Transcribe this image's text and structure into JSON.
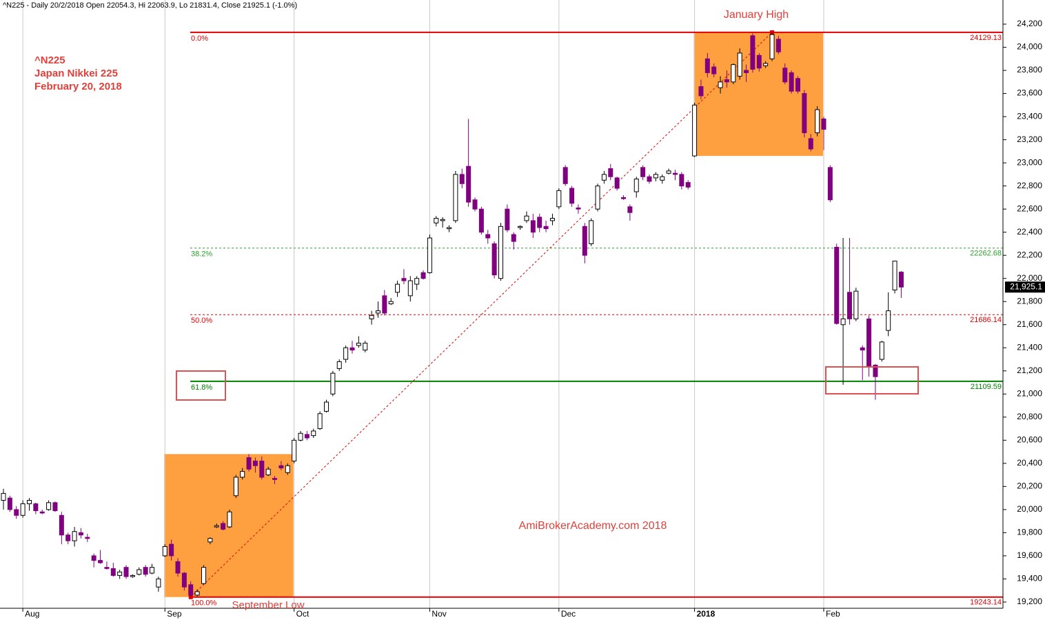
{
  "chart_data": {
    "type": "candlestick",
    "title": "^N225 - Daily 20/2/2018 Open 22054.3, Hi 22063.9, Lo 21831.4, Close 21925.1 (-1.0%)",
    "annotations": [
      "^N225",
      "Japan Nikkei 225",
      "February 20, 2018"
    ],
    "high_label": "January High",
    "low_label": "September Low",
    "watermark": "AmiBrokerAcademy.com  2018",
    "last_value_label": "21,925.1",
    "up_color": "#ffffff",
    "down_color": "#800080",
    "zones": [
      {
        "start": "Sep",
        "end": "Oct",
        "low": 19243.14,
        "high": 20480,
        "color": "#ffa040"
      },
      {
        "start": "2018",
        "end": "Feb",
        "low": 23060,
        "high": 24129.13,
        "color": "#ffa040"
      }
    ],
    "fib_levels": [
      {
        "label": "0.0%",
        "value": 24129.13,
        "color": "#e00000",
        "dashed": false
      },
      {
        "label": "38.2%",
        "value": 22262.68,
        "color": "#2aa02a",
        "dashed": true
      },
      {
        "label": "50.0%",
        "value": 21686.14,
        "color": "#e00000",
        "dashed": true
      },
      {
        "label": "61.8%",
        "value": 21109.59,
        "color": "#008000",
        "dashed": false
      },
      {
        "label": "100.0%",
        "value": 19243.14,
        "color": "#e00000",
        "dashed": false
      }
    ],
    "ylim": [
      19146,
      24409
    ],
    "yticks": [
      {
        "value": 19200,
        "label": "19,200"
      },
      {
        "value": 19400,
        "label": "19,400"
      },
      {
        "value": 19600,
        "label": "19,600"
      },
      {
        "value": 19800,
        "label": "19,800"
      },
      {
        "value": 20000,
        "label": "20,000"
      },
      {
        "value": 20200,
        "label": "20,200"
      },
      {
        "value": 20400,
        "label": "20,400"
      },
      {
        "value": 20600,
        "label": "20,600"
      },
      {
        "value": 20800,
        "label": "20,800"
      },
      {
        "value": 21000,
        "label": "21,000"
      },
      {
        "value": 21200,
        "label": "21,200"
      },
      {
        "value": 21400,
        "label": "21,400"
      },
      {
        "value": 21600,
        "label": "21,600"
      },
      {
        "value": 21800,
        "label": "21,800"
      },
      {
        "value": 22000,
        "label": "22,000"
      },
      {
        "value": 22200,
        "label": "22,200"
      },
      {
        "value": 22400,
        "label": "22,400"
      },
      {
        "value": 22600,
        "label": "22,600"
      },
      {
        "value": 22800,
        "label": "22,800"
      },
      {
        "value": 23000,
        "label": "23,000"
      },
      {
        "value": 23200,
        "label": "23,200"
      },
      {
        "value": 23400,
        "label": "23,400"
      },
      {
        "value": 23600,
        "label": "23,600"
      },
      {
        "value": 23800,
        "label": "23,800"
      },
      {
        "value": 24000,
        "label": "24,000"
      },
      {
        "value": 24200,
        "label": "24,200"
      }
    ],
    "categories": [
      null,
      null,
      null,
      "Aug",
      null,
      null,
      null,
      null,
      null,
      null,
      null,
      null,
      null,
      null,
      null,
      null,
      null,
      null,
      null,
      null,
      null,
      null,
      null,
      null,
      null,
      "Sep",
      null,
      null,
      null,
      null,
      null,
      null,
      null,
      null,
      null,
      null,
      null,
      null,
      null,
      null,
      null,
      null,
      null,
      null,
      null,
      "Oct",
      null,
      null,
      null,
      null,
      null,
      null,
      null,
      null,
      null,
      null,
      null,
      null,
      null,
      null,
      null,
      null,
      null,
      null,
      null,
      null,
      "Nov",
      null,
      null,
      null,
      null,
      null,
      null,
      null,
      null,
      null,
      null,
      null,
      null,
      null,
      null,
      null,
      null,
      null,
      null,
      null,
      "Dec",
      null,
      null,
      null,
      null,
      null,
      null,
      null,
      null,
      null,
      null,
      null,
      null,
      null,
      null,
      null,
      null,
      null,
      null,
      null,
      null,
      "2018",
      null,
      null,
      null,
      null,
      null,
      null,
      null,
      null,
      null,
      null,
      null,
      null,
      null,
      null,
      null,
      null,
      null,
      null,
      null,
      "Feb",
      null,
      null,
      null,
      null,
      null,
      null,
      null,
      null,
      null,
      null,
      null,
      null
    ],
    "ohlc": [
      [
        20080,
        20180,
        20000,
        20140
      ],
      [
        20100,
        20120,
        19980,
        20000
      ],
      [
        20000,
        20030,
        19920,
        19950
      ],
      [
        19950,
        20080,
        19930,
        20050
      ],
      [
        20050,
        20100,
        19990,
        20080
      ],
      [
        20050,
        20060,
        19960,
        19990
      ],
      [
        19980,
        20000,
        19960,
        19970
      ],
      [
        20000,
        20080,
        19990,
        20060
      ],
      [
        20060,
        20070,
        19980,
        19990
      ],
      [
        19950,
        19980,
        19700,
        19780
      ],
      [
        19780,
        19800,
        19700,
        19730
      ],
      [
        19730,
        19850,
        19680,
        19810
      ],
      [
        19800,
        19840,
        19750,
        19780
      ],
      [
        19760,
        19790,
        19720,
        19750
      ],
      [
        19600,
        19620,
        19500,
        19560
      ],
      [
        19560,
        19650,
        19530,
        19540
      ],
      [
        19500,
        19550,
        19480,
        19490
      ],
      [
        19490,
        19540,
        19420,
        19430
      ],
      [
        19430,
        19480,
        19400,
        19460
      ],
      [
        19500,
        19520,
        19400,
        19420
      ],
      [
        19420,
        19440,
        19410,
        19430
      ],
      [
        19440,
        19500,
        19430,
        19480
      ],
      [
        19500,
        19520,
        19420,
        19440
      ],
      [
        19450,
        19530,
        19440,
        19500
      ],
      [
        19330,
        19420,
        19290,
        19400
      ],
      [
        19600,
        19700,
        19590,
        19680
      ],
      [
        19700,
        19740,
        19560,
        19600
      ],
      [
        19550,
        19580,
        19420,
        19450
      ],
      [
        19450,
        19460,
        19300,
        19330
      ],
      [
        19350,
        19380,
        19243.14,
        19260
      ],
      [
        19260,
        19310,
        19250,
        19290
      ],
      [
        19360,
        19520,
        19350,
        19500
      ],
      [
        19720,
        19760,
        19700,
        19750
      ],
      [
        19850,
        19880,
        19840,
        19860
      ],
      [
        19880,
        19900,
        19820,
        19830
      ],
      [
        19850,
        20000,
        19840,
        19980
      ],
      [
        20120,
        20300,
        20100,
        20280
      ],
      [
        20280,
        20360,
        20260,
        20330
      ],
      [
        20450,
        20480,
        20330,
        20350
      ],
      [
        20420,
        20450,
        20320,
        20380
      ],
      [
        20420,
        20460,
        20260,
        20280
      ],
      [
        20300,
        20370,
        20290,
        20350
      ],
      [
        20270,
        20290,
        20220,
        20260
      ],
      [
        20380,
        20420,
        20340,
        20360
      ],
      [
        20320,
        20400,
        20300,
        20380
      ],
      [
        20420,
        20620,
        20400,
        20600
      ],
      [
        20600,
        20680,
        20590,
        20660
      ],
      [
        20650,
        20680,
        20600,
        20620
      ],
      [
        20640,
        20700,
        20620,
        20680
      ],
      [
        20700,
        20850,
        20690,
        20830
      ],
      [
        20850,
        20950,
        20840,
        20930
      ],
      [
        21000,
        21200,
        20980,
        21180
      ],
      [
        21220,
        21300,
        21200,
        21280
      ],
      [
        21300,
        21420,
        21270,
        21400
      ],
      [
        21400,
        21460,
        21350,
        21380
      ],
      [
        21420,
        21500,
        21400,
        21440
      ],
      [
        21380,
        21460,
        21360,
        21440
      ],
      [
        21650,
        21720,
        21600,
        21680
      ],
      [
        21700,
        21800,
        21660,
        21720
      ],
      [
        21850,
        21900,
        21680,
        21700
      ],
      [
        21780,
        21830,
        21770,
        21800
      ],
      [
        21880,
        21980,
        21840,
        21950
      ],
      [
        22000,
        22080,
        21950,
        21980
      ],
      [
        21850,
        22020,
        21800,
        21980
      ],
      [
        21950,
        22020,
        21900,
        22000
      ],
      [
        22050,
        22070,
        21990,
        22000
      ],
      [
        22050,
        22380,
        22040,
        22350
      ],
      [
        22480,
        22540,
        22450,
        22520
      ],
      [
        22500,
        22530,
        22440,
        22510
      ],
      [
        22430,
        22460,
        22400,
        22440
      ],
      [
        22500,
        22930,
        22480,
        22900
      ],
      [
        22900,
        22950,
        22780,
        22820
      ],
      [
        22970,
        23380,
        22620,
        22660
      ],
      [
        22680,
        22700,
        22580,
        22600
      ],
      [
        22600,
        22620,
        22380,
        22400
      ],
      [
        22380,
        22420,
        22300,
        22350
      ],
      [
        22300,
        22320,
        22000,
        22030
      ],
      [
        22000,
        22480,
        21980,
        22450
      ],
      [
        22600,
        22640,
        22400,
        22420
      ],
      [
        22380,
        22400,
        22250,
        22320
      ],
      [
        22440,
        22460,
        22420,
        22450
      ],
      [
        22500,
        22580,
        22480,
        22540
      ],
      [
        22500,
        22560,
        22350,
        22400
      ],
      [
        22530,
        22560,
        22400,
        22440
      ],
      [
        22450,
        22500,
        22400,
        22430
      ],
      [
        22500,
        22560,
        22460,
        22520
      ],
      [
        22620,
        22780,
        22600,
        22760
      ],
      [
        22960,
        22980,
        22800,
        22820
      ],
      [
        22780,
        22800,
        22620,
        22650
      ],
      [
        22610,
        22640,
        22560,
        22600
      ],
      [
        22450,
        22480,
        22130,
        22200
      ],
      [
        22300,
        22520,
        22280,
        22500
      ],
      [
        22600,
        22820,
        22580,
        22800
      ],
      [
        22850,
        22930,
        22820,
        22900
      ],
      [
        22950,
        22990,
        22850,
        22880
      ],
      [
        22870,
        22880,
        22760,
        22780
      ],
      [
        22700,
        22720,
        22680,
        22690
      ],
      [
        22620,
        22640,
        22500,
        22570
      ],
      [
        22750,
        22880,
        22700,
        22860
      ],
      [
        22960,
        22980,
        22850,
        22880
      ],
      [
        22880,
        22900,
        22820,
        22840
      ],
      [
        22870,
        22920,
        22840,
        22900
      ],
      [
        22850,
        22900,
        22820,
        22880
      ],
      [
        22910,
        22950,
        22900,
        22930
      ],
      [
        22910,
        22940,
        22850,
        22900
      ],
      [
        22900,
        22920,
        22770,
        22800
      ],
      [
        22830,
        22850,
        22770,
        22790
      ],
      [
        23060,
        23520,
        23050,
        23500
      ],
      [
        23660,
        23720,
        23550,
        23580
      ],
      [
        23900,
        23950,
        23740,
        23780
      ],
      [
        23830,
        23860,
        23740,
        23770
      ],
      [
        23650,
        23750,
        23600,
        23700
      ],
      [
        23720,
        23800,
        23650,
        23700
      ],
      [
        23700,
        23860,
        23680,
        23850
      ],
      [
        23750,
        23990,
        23720,
        23950
      ],
      [
        23800,
        23850,
        23700,
        23780
      ],
      [
        24100,
        24120,
        23780,
        23810
      ],
      [
        23930,
        23950,
        23790,
        23820
      ],
      [
        23840,
        23880,
        23820,
        23860
      ],
      [
        23900,
        24129.13,
        23880,
        24110
      ],
      [
        24070,
        24100,
        23940,
        23960
      ],
      [
        23820,
        23860,
        23680,
        23700
      ],
      [
        23780,
        23800,
        23600,
        23620
      ],
      [
        23730,
        23750,
        23600,
        23620
      ],
      [
        23600,
        23630,
        23220,
        23260
      ],
      [
        23210,
        23250,
        23100,
        23120
      ],
      [
        23260,
        23490,
        23230,
        23460
      ],
      [
        23380,
        23400,
        23110,
        23290
      ],
      [
        22960,
        22980,
        22660,
        22680
      ],
      [
        22270,
        22300,
        21600,
        21610
      ],
      [
        21600,
        22350,
        21080,
        21650
      ],
      [
        21880,
        22350,
        21600,
        21650
      ],
      [
        21650,
        21920,
        21630,
        21890
      ],
      [
        21400,
        21420,
        21120,
        21380
      ],
      [
        21650,
        21680,
        21150,
        21240
      ],
      [
        21250,
        21260,
        20950,
        21150
      ],
      [
        21300,
        21460,
        21280,
        21450
      ],
      [
        21550,
        21880,
        21500,
        21720
      ],
      [
        21900,
        22150,
        21870,
        22150
      ],
      [
        22054.3,
        22063.9,
        21831.4,
        21925.1
      ]
    ]
  }
}
